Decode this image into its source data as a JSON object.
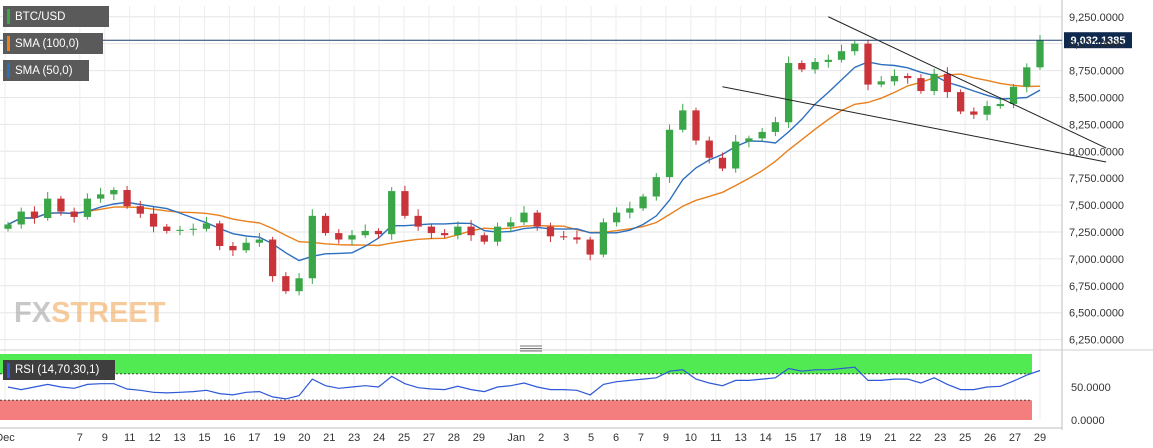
{
  "chart_data": {
    "type": "candlestick",
    "pair": "BTC/USD",
    "indicators": [
      {
        "name": "SMA (100,0)",
        "color": "#e8801e"
      },
      {
        "name": "SMA (50,0)",
        "color": "#2c6fbe"
      }
    ],
    "last_price": "9,032.1385",
    "price_axis_ticks": [
      "9,250.0000",
      "9,000.0000",
      "8,750.0000",
      "8,500.0000",
      "8,250.0000",
      "8,000.0000",
      "7,750.0000",
      "7,500.0000",
      "7,250.0000",
      "7,000.0000",
      "6,750.0000",
      "6,500.0000",
      "6,250.0000"
    ],
    "ylim": [
      6200,
      9350
    ],
    "x_ticks": [
      {
        "label": "Dec",
        "x": 0
      },
      {
        "label": "7",
        "x": 6
      },
      {
        "label": "9",
        "x": 8
      },
      {
        "label": "11",
        "x": 10
      },
      {
        "label": "12",
        "x": 12
      },
      {
        "label": "13",
        "x": 14
      },
      {
        "label": "15",
        "x": 16
      },
      {
        "label": "16",
        "x": 18
      },
      {
        "label": "17",
        "x": 20
      },
      {
        "label": "19",
        "x": 22
      },
      {
        "label": "20",
        "x": 24
      },
      {
        "label": "21",
        "x": 26
      },
      {
        "label": "23",
        "x": 28
      },
      {
        "label": "24",
        "x": 30
      },
      {
        "label": "25",
        "x": 32
      },
      {
        "label": "27",
        "x": 34
      },
      {
        "label": "28",
        "x": 36
      },
      {
        "label": "29",
        "x": 38
      },
      {
        "label": "Jan",
        "x": 41
      },
      {
        "label": "2",
        "x": 43
      },
      {
        "label": "3",
        "x": 45
      },
      {
        "label": "5",
        "x": 47
      },
      {
        "label": "6",
        "x": 49
      },
      {
        "label": "7",
        "x": 51
      },
      {
        "label": "9",
        "x": 53
      },
      {
        "label": "10",
        "x": 55
      },
      {
        "label": "11",
        "x": 57
      },
      {
        "label": "13",
        "x": 59
      },
      {
        "label": "14",
        "x": 61
      },
      {
        "label": "15",
        "x": 63
      },
      {
        "label": "17",
        "x": 65
      },
      {
        "label": "18",
        "x": 67
      },
      {
        "label": "19",
        "x": 69
      },
      {
        "label": "21",
        "x": 71
      },
      {
        "label": "22",
        "x": 73
      },
      {
        "label": "23",
        "x": 75
      },
      {
        "label": "25",
        "x": 77
      },
      {
        "label": "26",
        "x": 79
      },
      {
        "label": "27",
        "x": 81
      },
      {
        "label": "29",
        "x": 83
      }
    ],
    "close_series": [
      7320,
      7440,
      7380,
      7560,
      7440,
      7390,
      7560,
      7600,
      7640,
      7490,
      7420,
      7300,
      7260,
      7270,
      7280,
      7330,
      7120,
      7080,
      7150,
      7180,
      6840,
      6700,
      6820,
      7400,
      7240,
      7180,
      7220,
      7260,
      7230,
      7630,
      7400,
      7300,
      7240,
      7220,
      7300,
      7220,
      7160,
      7300,
      7340,
      7430,
      7300,
      7210,
      7200,
      7180,
      7040,
      7340,
      7430,
      7470,
      7580,
      7760,
      8200,
      8380,
      8100,
      7940,
      7840,
      8090,
      8120,
      8180,
      8270,
      8820,
      8760,
      8830,
      8850,
      8930,
      9000,
      8620,
      8650,
      8700,
      8680,
      8560,
      8720,
      8550,
      8370,
      8340,
      8420,
      8440,
      8600,
      8780,
      9032
    ],
    "trendlines": [
      {
        "name": "upper",
        "from": [
          62,
          9250
        ],
        "to": [
          83,
          8030
        ]
      },
      {
        "name": "lower",
        "from": [
          54,
          8600
        ],
        "to": [
          83,
          7900
        ]
      }
    ],
    "rsi": {
      "label": "RSI (14,70,30,1)",
      "overbought": 70,
      "oversold": 30,
      "ticks": [
        "50.0000",
        "0.0000"
      ],
      "values": [
        50,
        46,
        50,
        54,
        50,
        48,
        54,
        55,
        55,
        47,
        45,
        42,
        41,
        42,
        43,
        45,
        40,
        38,
        42,
        43,
        35,
        32,
        37,
        62,
        52,
        48,
        50,
        52,
        50,
        66,
        55,
        49,
        47,
        46,
        51,
        46,
        43,
        50,
        52,
        56,
        50,
        46,
        46,
        45,
        38,
        54,
        58,
        60,
        62,
        64,
        74,
        76,
        62,
        56,
        52,
        60,
        60,
        62,
        64,
        78,
        74,
        76,
        76,
        78,
        80,
        60,
        60,
        62,
        62,
        56,
        64,
        54,
        46,
        46,
        50,
        51,
        59,
        68,
        75
      ]
    }
  },
  "brand_watermark": "FXSTREET",
  "colors": {
    "candle_up": "#3aa648",
    "candle_down": "#c9333a",
    "rsi_line": "#2e58d6",
    "rsi_overbought_band": "#52ea52",
    "rsi_oversold_band": "#f47e7e",
    "last_price_line": "#1f3f6e"
  }
}
